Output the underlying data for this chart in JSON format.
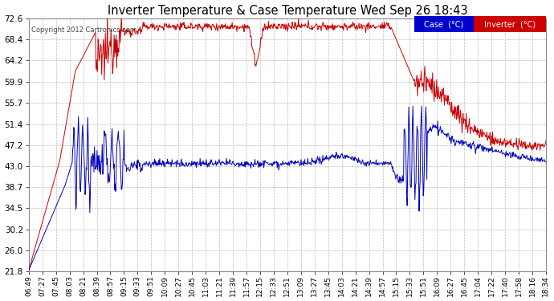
{
  "title": "Inverter Temperature & Case Temperature Wed Sep 26 18:43",
  "copyright": "Copyright 2012 Cartronics.com",
  "y_ticks": [
    21.8,
    26.0,
    30.2,
    34.5,
    38.7,
    43.0,
    47.2,
    51.4,
    55.7,
    59.9,
    64.2,
    68.4,
    72.6
  ],
  "y_min": 21.8,
  "y_max": 72.6,
  "background_color": "#ffffff",
  "grid_color": "#bbbbbb",
  "x_labels": [
    "06:49",
    "07:27",
    "07:45",
    "08:03",
    "08:21",
    "08:39",
    "08:57",
    "09:15",
    "09:33",
    "09:51",
    "10:09",
    "10:27",
    "10:45",
    "11:03",
    "11:21",
    "11:39",
    "11:57",
    "12:15",
    "12:33",
    "12:51",
    "13:09",
    "13:27",
    "13:45",
    "14:03",
    "14:21",
    "14:39",
    "14:57",
    "15:15",
    "15:33",
    "15:51",
    "16:09",
    "16:27",
    "16:45",
    "17:04",
    "17:22",
    "17:40",
    "17:58",
    "18:16",
    "18:34"
  ],
  "case_color": "#cc0000",
  "inverter_color": "#0000bb",
  "legend_case_bg": "#0000cc",
  "legend_inverter_bg": "#cc0000"
}
